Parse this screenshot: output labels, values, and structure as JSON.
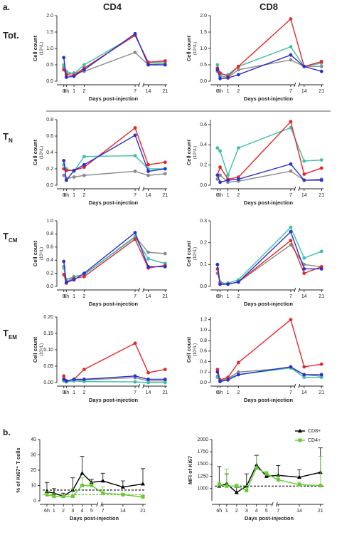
{
  "panel_a": {
    "label": "a.",
    "column_titles": [
      "CD4",
      "CD8"
    ],
    "row_labels": [
      {
        "text": "Tot."
      },
      {
        "text": "T",
        "sub": "N"
      },
      {
        "text": "T",
        "sub": "CM"
      },
      {
        "text": "T",
        "sub": "EM"
      }
    ]
  },
  "panel_b": {
    "label": "b."
  },
  "chart_data": [
    {
      "type": "line",
      "ylabel": "Cell count",
      "ylabel_unit": "(10⁹/L)",
      "xlabel": "Days post-injection",
      "x": [
        0,
        0.25,
        1,
        2,
        7,
        14,
        21
      ],
      "xlim": [
        -0.4,
        21.8
      ],
      "xbreak": [
        7.4,
        12
      ],
      "xticks": [
        0,
        {
          "value": 0.25,
          "label": "6h"
        },
        1,
        2,
        7,
        14,
        21
      ],
      "ylim": [
        0,
        2
      ],
      "yticks": [
        {
          "value": 0,
          "label": "0.0"
        },
        0.5,
        {
          "value": 1,
          "label": "1.0"
        },
        1.5,
        {
          "value": 2,
          "label": "2.0"
        }
      ],
      "series": [
        {
          "color": "#8a8a8a",
          "values": [
            0.42,
            0.22,
            0.25,
            0.3,
            0.88,
            0.5,
            0.55
          ]
        },
        {
          "color": "#3cc0a8",
          "values": [
            0.5,
            0.3,
            0.22,
            0.5,
            1.4,
            0.55,
            0.6
          ]
        },
        {
          "color": "#e8262a",
          "values": [
            0.35,
            0.2,
            0.18,
            0.4,
            1.4,
            0.58,
            0.62
          ]
        },
        {
          "color": "#2a2fd0",
          "values": [
            0.72,
            0.12,
            0.15,
            0.35,
            1.45,
            0.5,
            0.5
          ]
        }
      ]
    },
    {
      "type": "line",
      "ylabel": "Cell count",
      "ylabel_unit": "(10⁹/L)",
      "xlabel": "Days post-injection",
      "x": [
        0,
        0.25,
        1,
        2,
        7,
        14,
        21
      ],
      "xlim": [
        -0.4,
        21.8
      ],
      "xbreak": [
        7.4,
        12
      ],
      "xticks": [
        0,
        {
          "value": 0.25,
          "label": "6h"
        },
        1,
        2,
        7,
        14,
        21
      ],
      "ylim": [
        0,
        2
      ],
      "yticks": [
        {
          "value": 0,
          "label": "0.0"
        },
        0.5,
        {
          "value": 1,
          "label": "1.0"
        },
        1.5,
        {
          "value": 2,
          "label": "2.0"
        }
      ],
      "series": [
        {
          "color": "#8a8a8a",
          "values": [
            0.3,
            0.15,
            0.12,
            0.35,
            0.65,
            0.45,
            0.45
          ]
        },
        {
          "color": "#3cc0a8",
          "values": [
            0.5,
            0.2,
            0.2,
            0.45,
            1.05,
            0.45,
            0.55
          ]
        },
        {
          "color": "#e8262a",
          "values": [
            0.4,
            0.25,
            0.15,
            0.45,
            1.9,
            0.45,
            0.6
          ]
        },
        {
          "color": "#2a2fd0",
          "values": [
            0.35,
            0.08,
            0.1,
            0.2,
            0.8,
            0.45,
            0.3
          ]
        }
      ]
    },
    {
      "type": "line",
      "ylabel": "Cell count",
      "ylabel_unit": "(10⁹/L)",
      "xlabel": "Days post-injection",
      "x": [
        0,
        0.25,
        1,
        2,
        7,
        14,
        21
      ],
      "xlim": [
        -0.4,
        21.8
      ],
      "xbreak": [
        7.4,
        12
      ],
      "xticks": [
        0,
        {
          "value": 0.25,
          "label": "6h"
        },
        1,
        2,
        7,
        14,
        21
      ],
      "ylim": [
        0,
        0.8
      ],
      "yticks": [
        {
          "value": 0,
          "label": "0.0"
        },
        0.2,
        0.4,
        0.6,
        0.8
      ],
      "series": [
        {
          "color": "#8a8a8a",
          "values": [
            0.12,
            0.08,
            0.1,
            0.12,
            0.17,
            0.12,
            0.14
          ]
        },
        {
          "color": "#3cc0a8",
          "values": [
            0.25,
            0.2,
            0.17,
            0.35,
            0.36,
            0.2,
            0.2
          ]
        },
        {
          "color": "#e8262a",
          "values": [
            0.2,
            0.18,
            0.18,
            0.22,
            0.7,
            0.25,
            0.28
          ]
        },
        {
          "color": "#2a2fd0",
          "values": [
            0.3,
            0.06,
            0.18,
            0.25,
            0.61,
            0.17,
            0.2
          ]
        }
      ]
    },
    {
      "type": "line",
      "ylabel": "Cell count",
      "ylabel_unit": "(10⁹/L)",
      "xlabel": "Days post-injection",
      "x": [
        0,
        0.25,
        1,
        2,
        7,
        14,
        21
      ],
      "xlim": [
        -0.4,
        21.8
      ],
      "xbreak": [
        7.4,
        12
      ],
      "xticks": [
        0,
        {
          "value": 0.25,
          "label": "6h"
        },
        1,
        2,
        7,
        14,
        21
      ],
      "ylim": [
        0,
        0.65
      ],
      "yticks": [
        {
          "value": 0,
          "label": "0.0"
        },
        0.2,
        0.4,
        0.6
      ],
      "series": [
        {
          "color": "#8a8a8a",
          "values": [
            0.06,
            0.1,
            0.03,
            0.04,
            0.14,
            0.05,
            0.06
          ]
        },
        {
          "color": "#3cc0a8",
          "values": [
            0.37,
            0.34,
            0.1,
            0.37,
            0.57,
            0.24,
            0.25
          ]
        },
        {
          "color": "#e8262a",
          "values": [
            0.1,
            0.18,
            0.06,
            0.08,
            0.63,
            0.11,
            0.17
          ]
        },
        {
          "color": "#2a2fd0",
          "values": [
            0.1,
            0.03,
            0.05,
            0.06,
            0.21,
            0.05,
            0.05
          ]
        }
      ]
    },
    {
      "type": "line",
      "ylabel": "Cell count",
      "ylabel_unit": "(10⁹/L)",
      "xlabel": "Days post-injection",
      "x": [
        0,
        0.25,
        1,
        2,
        7,
        14,
        21
      ],
      "xlim": [
        -0.4,
        21.8
      ],
      "xbreak": [
        7.4,
        12
      ],
      "xticks": [
        0,
        {
          "value": 0.25,
          "label": "6h"
        },
        1,
        2,
        7,
        14,
        21
      ],
      "ylim": [
        0,
        1
      ],
      "yticks": [
        {
          "value": 0,
          "label": "0.0"
        },
        0.2,
        0.4,
        0.6,
        0.8,
        {
          "value": 1,
          "label": "1.0"
        }
      ],
      "series": [
        {
          "color": "#8a8a8a",
          "values": [
            0.3,
            0.06,
            0.15,
            0.18,
            0.76,
            0.52,
            0.5
          ]
        },
        {
          "color": "#3cc0a8",
          "values": [
            0.28,
            0.1,
            0.15,
            0.18,
            0.75,
            0.42,
            0.35
          ]
        },
        {
          "color": "#e8262a",
          "values": [
            0.18,
            0.05,
            0.12,
            0.15,
            0.72,
            0.28,
            0.32
          ]
        },
        {
          "color": "#2a2fd0",
          "values": [
            0.38,
            0.06,
            0.1,
            0.2,
            0.82,
            0.3,
            0.3
          ]
        }
      ]
    },
    {
      "type": "line",
      "ylabel": "Cell count",
      "ylabel_unit": "(10⁹/L)",
      "xlabel": "Days post-injection",
      "x": [
        0,
        0.25,
        1,
        2,
        7,
        14,
        21
      ],
      "xlim": [
        -0.4,
        21.8
      ],
      "xbreak": [
        7.4,
        12
      ],
      "xticks": [
        0,
        {
          "value": 0.25,
          "label": "6h"
        },
        1,
        2,
        7,
        14,
        21
      ],
      "ylim": [
        0,
        0.3
      ],
      "yticks": [
        {
          "value": 0,
          "label": "0.0"
        },
        0.1,
        0.2,
        0.3
      ],
      "series": [
        {
          "color": "#8a8a8a",
          "values": [
            0.06,
            0.02,
            0.01,
            0.02,
            0.19,
            0.1,
            0.09
          ]
        },
        {
          "color": "#3cc0a8",
          "values": [
            0.1,
            0.01,
            0.015,
            0.03,
            0.27,
            0.13,
            0.16
          ]
        },
        {
          "color": "#e8262a",
          "values": [
            0.08,
            0.01,
            0.01,
            0.02,
            0.21,
            0.06,
            0.09
          ]
        },
        {
          "color": "#2a2fd0",
          "values": [
            0.1,
            0.01,
            0.01,
            0.02,
            0.25,
            0.08,
            0.08
          ]
        }
      ]
    },
    {
      "type": "line",
      "ylabel": "Cell count",
      "ylabel_unit": "(10⁹/L)",
      "xlabel": "Days post-injection",
      "x": [
        0,
        0.25,
        1,
        2,
        7,
        14,
        21
      ],
      "xlim": [
        -0.4,
        21.8
      ],
      "xbreak": [
        7.4,
        12
      ],
      "xticks": [
        0,
        {
          "value": 0.25,
          "label": "6h"
        },
        1,
        2,
        7,
        14,
        21
      ],
      "ylim": [
        0,
        0.2
      ],
      "yticks": [
        {
          "value": 0,
          "label": "0.00"
        },
        0.05,
        {
          "value": 0.1,
          "label": "0.10"
        },
        0.15,
        {
          "value": 0.2,
          "label": "0.20"
        }
      ],
      "series": [
        {
          "color": "#8a8a8a",
          "values": [
            0.01,
            0.003,
            0.005,
            0.008,
            0.015,
            0.005,
            0.005
          ]
        },
        {
          "color": "#3cc0a8",
          "values": [
            0.005,
            0.002,
            0.005,
            0.003,
            0.002,
            0,
            0
          ]
        },
        {
          "color": "#e8262a",
          "values": [
            0.02,
            0.005,
            0.01,
            0.04,
            0.12,
            0.03,
            0.04
          ]
        },
        {
          "color": "#2a2fd0",
          "values": [
            0.01,
            0.005,
            0.01,
            0.01,
            0.02,
            0.01,
            0.01
          ]
        }
      ]
    },
    {
      "type": "line",
      "ylabel": "Cell count",
      "ylabel_unit": "(10⁹/L)",
      "xlabel": "Days post-injection",
      "x": [
        0,
        0.25,
        1,
        2,
        7,
        14,
        21
      ],
      "xlim": [
        -0.4,
        21.8
      ],
      "xbreak": [
        7.4,
        12
      ],
      "xticks": [
        0,
        {
          "value": 0.25,
          "label": "6h"
        },
        1,
        2,
        7,
        14,
        21
      ],
      "ylim": [
        0,
        1.25
      ],
      "yticks": [
        {
          "value": 0,
          "label": "0.0"
        },
        0.2,
        0.4,
        0.6,
        0.8,
        {
          "value": 1,
          "label": "1.0"
        },
        1.2
      ],
      "series": [
        {
          "color": "#8a8a8a",
          "values": [
            0.12,
            0.03,
            0.08,
            0.2,
            0.28,
            0.15,
            0.12
          ]
        },
        {
          "color": "#3cc0a8",
          "values": [
            0.1,
            0.02,
            0.08,
            0.15,
            0.28,
            0.1,
            0.1
          ]
        },
        {
          "color": "#e8262a",
          "values": [
            0.25,
            0.05,
            0.1,
            0.38,
            1.2,
            0.3,
            0.35
          ]
        },
        {
          "color": "#2a2fd0",
          "values": [
            0.2,
            0.02,
            0.05,
            0.15,
            0.3,
            0.15,
            0.15
          ]
        }
      ]
    },
    {
      "type": "line",
      "ylabel": "% of Ki67⁺ T cells",
      "xlabel": "Days post-injection",
      "x": [
        0.25,
        1,
        2,
        3,
        4,
        5,
        7,
        14,
        21
      ],
      "xlim": [
        -0.2,
        22
      ],
      "xbreak": [
        5.6,
        6.5
      ],
      "xticks": [
        {
          "value": 0.25,
          "label": "6h"
        },
        1,
        2,
        3,
        4,
        5,
        7,
        14,
        21
      ],
      "ylim": [
        0,
        40
      ],
      "yticks": [
        0,
        10,
        20,
        30,
        40
      ],
      "reference_lines": [
        {
          "value": 7,
          "color": "#000000"
        },
        {
          "value": 4,
          "color": "#66cc33"
        }
      ],
      "series": [
        {
          "name": "CD8+",
          "color": "#000000",
          "marker": "triangle",
          "values": [
            6,
            5,
            3,
            7,
            18,
            12,
            13,
            9,
            11
          ],
          "errors": [
            6,
            3,
            2,
            8,
            11,
            2,
            5,
            4,
            10
          ]
        },
        {
          "name": "CD4+",
          "color": "#66cc33",
          "marker": "square",
          "values": [
            4,
            3,
            3,
            3,
            10,
            10,
            5,
            4,
            2.5
          ],
          "errors": [
            2,
            2,
            1,
            5,
            5,
            2,
            4,
            1,
            1
          ]
        }
      ]
    },
    {
      "type": "line",
      "ylabel": "MFI of Ki67",
      "xlabel": "Days post-injection",
      "x": [
        0.25,
        1,
        2,
        3,
        4,
        5,
        7,
        14,
        21
      ],
      "xlim": [
        -0.2,
        22
      ],
      "xbreak": [
        5.6,
        6.5
      ],
      "xticks": [
        {
          "value": 0.25,
          "label": "6h"
        },
        1,
        2,
        3,
        4,
        5,
        7,
        14,
        21
      ],
      "ylim": [
        750,
        2000
      ],
      "yticks": [
        1000,
        1250,
        1500,
        1750,
        2000
      ],
      "reference_lines": [
        {
          "value": 1050,
          "color": "#000000"
        }
      ],
      "legend": "upper right",
      "series": [
        {
          "name": "CD8+",
          "color": "#000000",
          "marker": "triangle",
          "values": [
            1050,
            1100,
            920,
            1050,
            1480,
            1250,
            1270,
            1230,
            1330
          ],
          "errors": [
            400,
            200,
            100,
            250,
            200,
            50,
            200,
            150,
            500
          ]
        },
        {
          "name": "CD4+",
          "color": "#66cc33",
          "marker": "square",
          "values": [
            1080,
            1050,
            1050,
            960,
            1420,
            1300,
            1180,
            1080,
            1060
          ],
          "errors": [
            50,
            350,
            40,
            100,
            250,
            50,
            80,
            50,
            600
          ]
        }
      ]
    }
  ]
}
